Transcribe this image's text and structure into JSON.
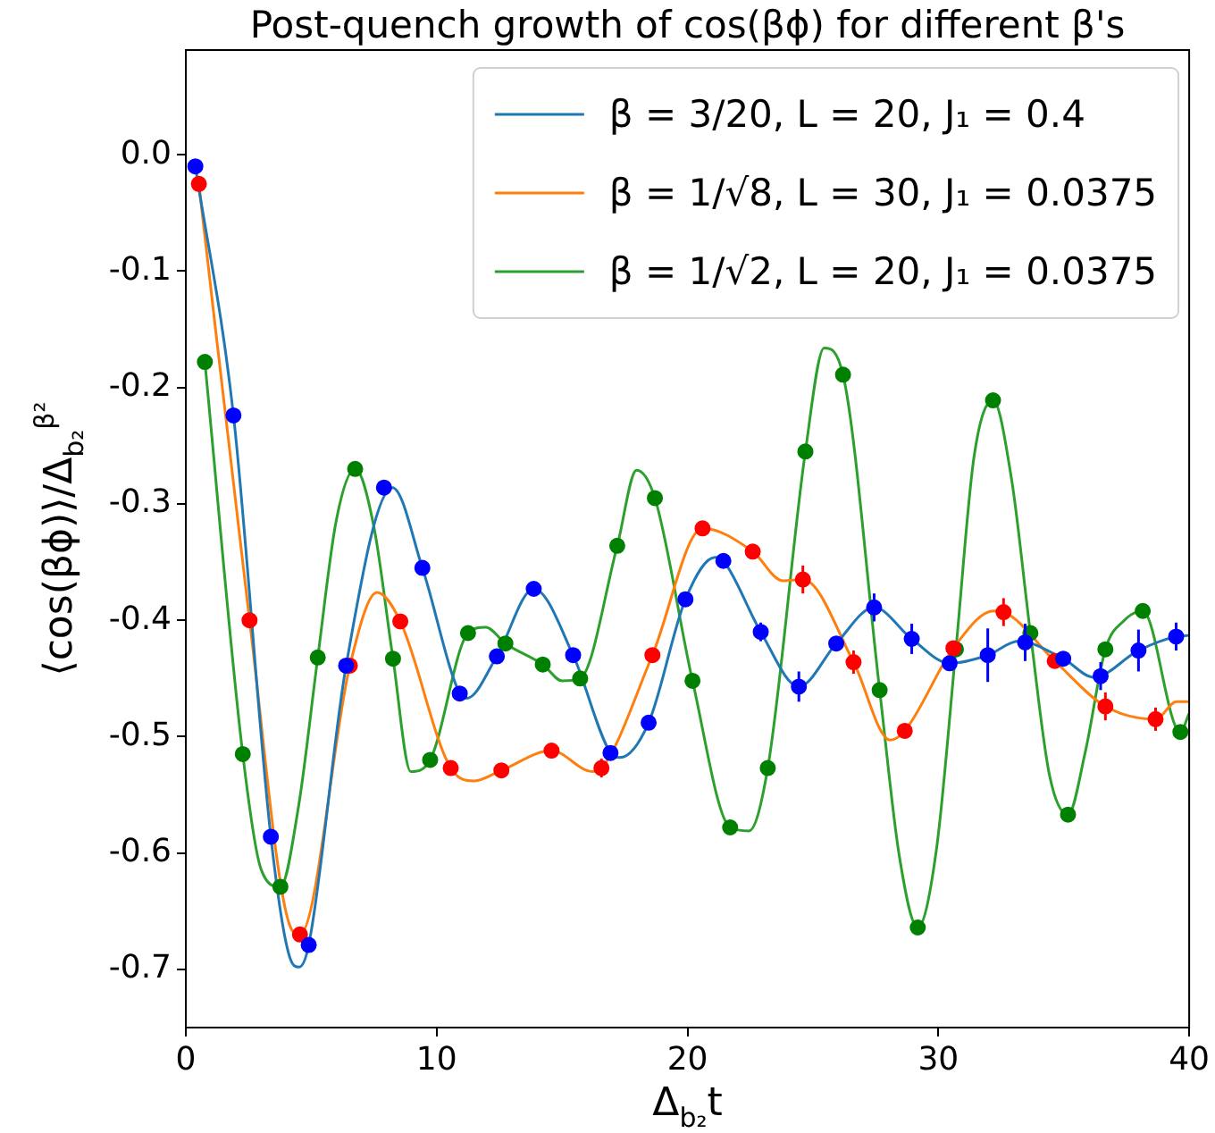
{
  "chart_data": {
    "type": "line",
    "title": "Post-quench growth of cos(βϕ) for different β's",
    "xlabel": "Δ$_{b₂}$t",
    "ylabel": "⟨cos(βϕ)⟩/Δ$_{b₂}$$^{β²}$",
    "xlim": [
      0,
      40
    ],
    "xticks": [
      0,
      10,
      20,
      30,
      40
    ],
    "ylim": [
      -0.75,
      0.09
    ],
    "yticks": [
      {
        "value": -0.7,
        "label": "-0.7"
      },
      {
        "value": -0.6,
        "label": "-0.6"
      },
      {
        "value": -0.5,
        "label": "-0.5"
      },
      {
        "value": -0.4,
        "label": "-0.4"
      },
      {
        "value": -0.3,
        "label": "-0.3"
      },
      {
        "value": -0.2,
        "label": "-0.2"
      },
      {
        "value": -0.1,
        "label": "-0.1"
      },
      {
        "value": 0,
        "label": "0.0"
      }
    ],
    "grid": false,
    "legend": "top right",
    "series": [
      {
        "type": "line",
        "name": "β = 3/20, L = 20, J₁ = 0.4",
        "color": "#1f77b4",
        "x": [
          0.38,
          1.9,
          3.39,
          4.15,
          4.52,
          4.9,
          6.39,
          8.24,
          9.43,
          10.92,
          11.2,
          12.4,
          13.87,
          15.44,
          16.93,
          17.3,
          18.45,
          19.92,
          21.1,
          21.43,
          22.92,
          24.44,
          25.93,
          27.44,
          28.94,
          30.45,
          31.97,
          33.2,
          34.98,
          36.2,
          37.98,
          39.48,
          40
        ],
        "values": [
          -0.01,
          -0.224,
          -0.586,
          -0.69,
          -0.698,
          -0.679,
          -0.439,
          -0.286,
          -0.355,
          -0.463,
          -0.467,
          -0.431,
          -0.373,
          -0.43,
          -0.514,
          -0.518,
          -0.488,
          -0.382,
          -0.346,
          -0.349,
          -0.41,
          -0.457,
          -0.42,
          -0.389,
          -0.416,
          -0.437,
          -0.43,
          -0.418,
          -0.433,
          -0.449,
          -0.426,
          -0.414,
          -0.413
        ]
      },
      {
        "type": "line",
        "name": "β = 1/√8, L = 30, J₁ = 0.0375",
        "color": "#ff7f0e",
        "x": [
          0.52,
          2.54,
          4.14,
          4.55,
          6.54,
          7.62,
          8.55,
          10.56,
          11.5,
          12.58,
          14.58,
          16.2,
          16.57,
          18.6,
          20.6,
          22.6,
          23.8,
          24.6,
          26.62,
          28.08,
          28.66,
          30.6,
          32.2,
          32.6,
          34.64,
          36.66,
          38.66,
          39.5,
          40
        ],
        "values": [
          -0.025,
          -0.4,
          -0.662,
          -0.67,
          -0.439,
          -0.376,
          -0.401,
          -0.527,
          -0.538,
          -0.529,
          -0.512,
          -0.53,
          -0.527,
          -0.43,
          -0.321,
          -0.341,
          -0.366,
          -0.365,
          -0.436,
          -0.503,
          -0.495,
          -0.424,
          -0.392,
          -0.393,
          -0.435,
          -0.474,
          -0.485,
          -0.47,
          -0.47
        ]
      },
      {
        "type": "line",
        "name": "β = 1/√2, L = 20, J₁ = 0.0375",
        "color": "#2ca02c",
        "x": [
          0.76,
          2.27,
          3.0,
          3.77,
          4.5,
          5.26,
          6.0,
          6.75,
          7.5,
          8.26,
          8.97,
          9.74,
          11.25,
          11.96,
          12.74,
          14.23,
          15.0,
          15.72,
          17.2,
          17.97,
          18.7,
          20.2,
          21.7,
          22.45,
          23.2,
          24.7,
          25.45,
          26.2,
          27.66,
          28.44,
          29.18,
          29.93,
          30.7,
          31.42,
          32.18,
          32.92,
          33.67,
          34.43,
          35.17,
          35.86,
          36.66,
          37.42,
          38.15,
          39.65,
          40
        ],
        "values": [
          -0.178,
          -0.515,
          -0.614,
          -0.629,
          -0.559,
          -0.432,
          -0.314,
          -0.27,
          -0.32,
          -0.433,
          -0.53,
          -0.52,
          -0.411,
          -0.406,
          -0.42,
          -0.438,
          -0.452,
          -0.45,
          -0.336,
          -0.271,
          -0.295,
          -0.452,
          -0.578,
          -0.581,
          -0.527,
          -0.255,
          -0.166,
          -0.189,
          -0.46,
          -0.602,
          -0.664,
          -0.596,
          -0.425,
          -0.26,
          -0.211,
          -0.279,
          -0.411,
          -0.533,
          -0.567,
          -0.513,
          -0.425,
          -0.4,
          -0.392,
          -0.496,
          -0.48
        ]
      },
      {
        "type": "scatter",
        "marker": "circle",
        "color": "#0000ff",
        "x": [
          0.38,
          1.9,
          3.39,
          4.9,
          6.39,
          7.9,
          9.43,
          10.92,
          12.4,
          13.87,
          15.44,
          16.93,
          18.45,
          19.92,
          21.43,
          22.92,
          24.44,
          25.93,
          27.44,
          28.94,
          30.45,
          31.97,
          33.46,
          34.98,
          36.47,
          37.98,
          39.48
        ],
        "values": [
          -0.01,
          -0.224,
          -0.586,
          -0.679,
          -0.439,
          -0.286,
          -0.355,
          -0.463,
          -0.431,
          -0.373,
          -0.43,
          -0.514,
          -0.488,
          -0.382,
          -0.349,
          -0.41,
          -0.457,
          -0.42,
          -0.389,
          -0.416,
          -0.437,
          -0.43,
          -0.419,
          -0.433,
          -0.448,
          -0.426,
          -0.414
        ],
        "errors": [
          null,
          null,
          null,
          null,
          null,
          null,
          null,
          null,
          null,
          null,
          null,
          null,
          null,
          null,
          null,
          0.008,
          0.013,
          null,
          0.012,
          0.013,
          null,
          0.023,
          0.016,
          null,
          0.012,
          0.018,
          0.012
        ]
      },
      {
        "type": "scatter",
        "marker": "circle",
        "color": "#ff0000",
        "x": [
          0.52,
          2.54,
          4.55,
          6.54,
          8.55,
          10.56,
          12.58,
          14.58,
          16.57,
          18.6,
          20.6,
          22.6,
          24.6,
          26.62,
          28.66,
          30.6,
          32.6,
          34.64,
          36.66,
          38.66
        ],
        "values": [
          -0.025,
          -0.4,
          -0.67,
          -0.439,
          -0.401,
          -0.527,
          -0.529,
          -0.512,
          -0.527,
          -0.43,
          -0.321,
          -0.341,
          -0.365,
          -0.436,
          -0.495,
          -0.424,
          -0.393,
          -0.435,
          -0.474,
          -0.485
        ],
        "errors": [
          null,
          null,
          null,
          null,
          null,
          null,
          null,
          null,
          0.008,
          null,
          null,
          null,
          0.012,
          0.01,
          null,
          null,
          0.012,
          null,
          0.012,
          0.01
        ]
      },
      {
        "type": "scatter",
        "marker": "circle",
        "color": "#008000",
        "x": [
          0.76,
          2.27,
          3.77,
          5.26,
          6.75,
          8.26,
          9.74,
          11.25,
          12.74,
          14.23,
          15.72,
          17.2,
          18.7,
          20.2,
          21.7,
          23.2,
          24.7,
          26.2,
          27.66,
          29.18,
          30.7,
          32.18,
          33.67,
          35.17,
          36.66,
          38.15,
          39.65
        ],
        "values": [
          -0.178,
          -0.515,
          -0.629,
          -0.432,
          -0.27,
          -0.433,
          -0.52,
          -0.411,
          -0.42,
          -0.438,
          -0.45,
          -0.336,
          -0.295,
          -0.452,
          -0.578,
          -0.527,
          -0.255,
          -0.189,
          -0.46,
          -0.664,
          -0.425,
          -0.211,
          -0.411,
          -0.567,
          -0.425,
          -0.392,
          -0.496
        ]
      }
    ]
  }
}
